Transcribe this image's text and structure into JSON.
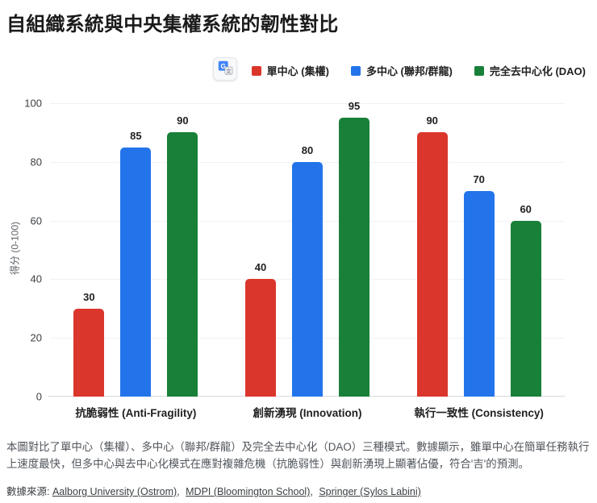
{
  "title": "自組織系統與中央集權系統的韌性對比",
  "toolbar": {
    "translate_button": {
      "icon": "google-translate-icon"
    }
  },
  "legend": [
    {
      "label": "單中心 (集權)",
      "color": "#db362b"
    },
    {
      "label": "多中心 (聯邦/群龍)",
      "color": "#2374ea"
    },
    {
      "label": "完全去中心化 (DAO)",
      "color": "#188038"
    }
  ],
  "chart_data": {
    "type": "bar",
    "title": "自組織系統與中央集權系統的韌性對比",
    "categories": [
      "抗脆弱性 (Anti-Fragility)",
      "創新湧現 (Innovation)",
      "執行一致性 (Consistency)"
    ],
    "series": [
      {
        "name": "單中心 (集權)",
        "color": "#db362b",
        "values": [
          30,
          40,
          90
        ]
      },
      {
        "name": "多中心 (聯邦/群龍)",
        "color": "#2374ea",
        "values": [
          85,
          80,
          70
        ]
      },
      {
        "name": "完全去中心化 (DAO)",
        "color": "#188038",
        "values": [
          90,
          95,
          60
        ]
      }
    ],
    "xlabel": "",
    "ylabel": "得分 (0-100)",
    "ylim": [
      0,
      100
    ],
    "yticks": [
      0,
      20,
      40,
      60,
      80,
      100
    ],
    "grid": true,
    "legend_position": "top"
  },
  "description": "本圖對比了單中心（集權）、多中心（聯邦/群龍）及完全去中心化（DAO）三種模式。數據顯示，雖單中心在簡單任務執行上速度最快，但多中心與去中心化模式在應對複雜危機（抗脆弱性）與創新湧現上顯著佔優，符合'吉'的預測。",
  "sources": {
    "prefix": "數據來源:",
    "separator": ",",
    "links": [
      "Aalborg University (Ostrom)",
      "MDPI (Bloomington School)",
      "Springer (Sylos Labini)"
    ]
  }
}
